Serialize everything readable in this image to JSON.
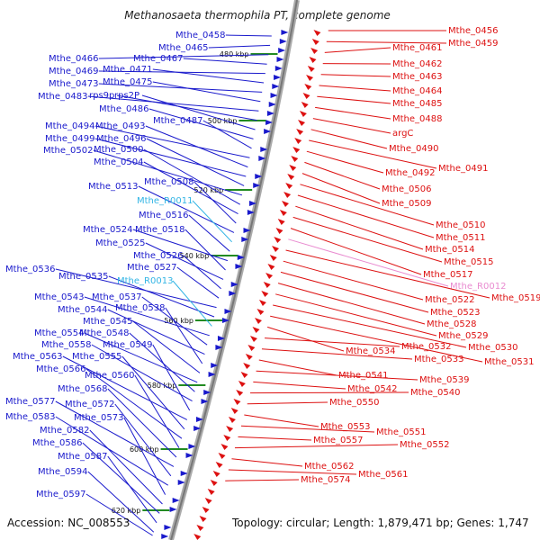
{
  "title": "Methanosaeta thermophila PT, complete genome",
  "accession": "Accession: NC_008553",
  "topology": "Topology: circular; Length: 1,879,471 bp; Genes: 1,747",
  "colors": {
    "left_gene": "#1a1acc",
    "left_rna": "#33b5e5",
    "right_gene": "#dd1111",
    "right_rna": "#e98bd0",
    "backbone": "#999999",
    "tick_mark": "#228b22"
  },
  "ticks": [
    "480 kbp",
    "500 kbp",
    "520 kbp",
    "540 kbp",
    "560 kbp",
    "580 kbp",
    "600 kbp",
    "620 kbp"
  ],
  "left_labels": [
    {
      "text": "Mthe_0458",
      "kind": "gene"
    },
    {
      "text": "Mthe_0465",
      "kind": "gene"
    },
    {
      "text": "Mthe_0466",
      "kind": "gene"
    },
    {
      "text": "Mthe_0467",
      "kind": "gene"
    },
    {
      "text": "Mthe_0469",
      "kind": "gene"
    },
    {
      "text": "Mthe_0471",
      "kind": "gene"
    },
    {
      "text": "Mthe_0473",
      "kind": "gene"
    },
    {
      "text": "Mthe_0475",
      "kind": "gene"
    },
    {
      "text": "Mthe_0483",
      "kind": "gene"
    },
    {
      "text": "rps9p",
      "kind": "gene"
    },
    {
      "text": "rps2P",
      "kind": "gene"
    },
    {
      "text": "Mthe_0486",
      "kind": "gene"
    },
    {
      "text": "Mthe_0487",
      "kind": "gene"
    },
    {
      "text": "Mthe_0494",
      "kind": "gene"
    },
    {
      "text": "Mthe_0493",
      "kind": "gene"
    },
    {
      "text": "Mthe_0499",
      "kind": "gene"
    },
    {
      "text": "Mthe_0496",
      "kind": "gene"
    },
    {
      "text": "Mthe_0502",
      "kind": "gene"
    },
    {
      "text": "Mthe_0500",
      "kind": "gene"
    },
    {
      "text": "Mthe_0504",
      "kind": "gene"
    },
    {
      "text": "Mthe_0508",
      "kind": "gene"
    },
    {
      "text": "Mthe_0513",
      "kind": "gene"
    },
    {
      "text": "Mthe_R0011",
      "kind": "rna"
    },
    {
      "text": "Mthe_0516",
      "kind": "gene"
    },
    {
      "text": "Mthe_0524",
      "kind": "gene"
    },
    {
      "text": "Mthe_0518",
      "kind": "gene"
    },
    {
      "text": "Mthe_0525",
      "kind": "gene"
    },
    {
      "text": "Mthe_0526",
      "kind": "gene"
    },
    {
      "text": "Mthe_0527",
      "kind": "gene"
    },
    {
      "text": "Mthe_0536",
      "kind": "gene"
    },
    {
      "text": "Mthe_0535",
      "kind": "gene"
    },
    {
      "text": "Mthe_R0013",
      "kind": "rna"
    },
    {
      "text": "Mthe_0543",
      "kind": "gene"
    },
    {
      "text": "Mthe_0537",
      "kind": "gene"
    },
    {
      "text": "Mthe_0544",
      "kind": "gene"
    },
    {
      "text": "Mthe_0538",
      "kind": "gene"
    },
    {
      "text": "Mthe_0545",
      "kind": "gene"
    },
    {
      "text": "Mthe_0554",
      "kind": "gene"
    },
    {
      "text": "Mthe_0548",
      "kind": "gene"
    },
    {
      "text": "Mthe_0558",
      "kind": "gene"
    },
    {
      "text": "Mthe_0549",
      "kind": "gene"
    },
    {
      "text": "Mthe_0563",
      "kind": "gene"
    },
    {
      "text": "Mthe_0555",
      "kind": "gene"
    },
    {
      "text": "Mthe_0566",
      "kind": "gene"
    },
    {
      "text": "Mthe_0560",
      "kind": "gene"
    },
    {
      "text": "Mthe_0568",
      "kind": "gene"
    },
    {
      "text": "Mthe_0577",
      "kind": "gene"
    },
    {
      "text": "Mthe_0572",
      "kind": "gene"
    },
    {
      "text": "Mthe_0583",
      "kind": "gene"
    },
    {
      "text": "Mthe_0573",
      "kind": "gene"
    },
    {
      "text": "Mthe_0582",
      "kind": "gene"
    },
    {
      "text": "Mthe_0586",
      "kind": "gene"
    },
    {
      "text": "Mthe_0587",
      "kind": "gene"
    },
    {
      "text": "Mthe_0594",
      "kind": "gene"
    },
    {
      "text": "Mthe_0597",
      "kind": "gene"
    }
  ],
  "right_labels": [
    {
      "text": "Mthe_0456",
      "kind": "gene"
    },
    {
      "text": "Mthe_0459",
      "kind": "gene"
    },
    {
      "text": "Mthe_0461",
      "kind": "gene"
    },
    {
      "text": "Mthe_0462",
      "kind": "gene"
    },
    {
      "text": "Mthe_0463",
      "kind": "gene"
    },
    {
      "text": "Mthe_0464",
      "kind": "gene"
    },
    {
      "text": "Mthe_0485",
      "kind": "gene"
    },
    {
      "text": "Mthe_0488",
      "kind": "gene"
    },
    {
      "text": "argC",
      "kind": "gene"
    },
    {
      "text": "Mthe_0490",
      "kind": "gene"
    },
    {
      "text": "Mthe_0491",
      "kind": "gene"
    },
    {
      "text": "Mthe_0492",
      "kind": "gene"
    },
    {
      "text": "Mthe_0506",
      "kind": "gene"
    },
    {
      "text": "Mthe_0509",
      "kind": "gene"
    },
    {
      "text": "Mthe_0510",
      "kind": "gene"
    },
    {
      "text": "Mthe_0511",
      "kind": "gene"
    },
    {
      "text": "Mthe_0514",
      "kind": "gene"
    },
    {
      "text": "Mthe_0515",
      "kind": "gene"
    },
    {
      "text": "Mthe_0517",
      "kind": "gene"
    },
    {
      "text": "Mthe_R0012",
      "kind": "rna"
    },
    {
      "text": "Mthe_0519",
      "kind": "gene"
    },
    {
      "text": "Mthe_0522",
      "kind": "gene"
    },
    {
      "text": "Mthe_0523",
      "kind": "gene"
    },
    {
      "text": "Mthe_0528",
      "kind": "gene"
    },
    {
      "text": "Mthe_0529",
      "kind": "gene"
    },
    {
      "text": "Mthe_0530",
      "kind": "gene"
    },
    {
      "text": "Mthe_0531",
      "kind": "gene"
    },
    {
      "text": "Mthe_0534",
      "kind": "gene"
    },
    {
      "text": "Mthe_0532",
      "kind": "gene"
    },
    {
      "text": "Mthe_0533",
      "kind": "gene"
    },
    {
      "text": "Mthe_0541",
      "kind": "gene"
    },
    {
      "text": "Mthe_0539",
      "kind": "gene"
    },
    {
      "text": "Mthe_0542",
      "kind": "gene"
    },
    {
      "text": "Mthe_0540",
      "kind": "gene"
    },
    {
      "text": "Mthe_0550",
      "kind": "gene"
    },
    {
      "text": "Mthe_0553",
      "kind": "gene"
    },
    {
      "text": "Mthe_0551",
      "kind": "gene"
    },
    {
      "text": "Mthe_0557",
      "kind": "gene"
    },
    {
      "text": "Mthe_0552",
      "kind": "gene"
    },
    {
      "text": "Mthe_0562",
      "kind": "gene"
    },
    {
      "text": "Mthe_0561",
      "kind": "gene"
    },
    {
      "text": "Mthe_0574",
      "kind": "gene"
    }
  ]
}
